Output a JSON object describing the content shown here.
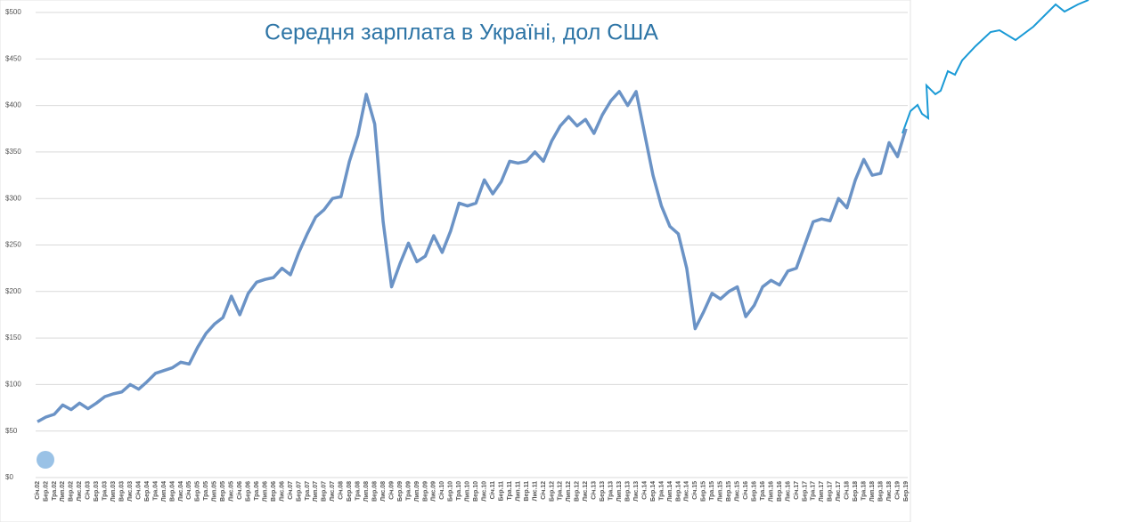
{
  "chart_data": {
    "type": "line",
    "title": "Середня зарплата в Україні, дол США",
    "categories": [
      "Січ.02",
      "Бер.02",
      "Тра.02",
      "Лип.02",
      "Вер.02",
      "Лис.02",
      "Січ.03",
      "Бер.03",
      "Тра.03",
      "Лип.03",
      "Вер.03",
      "Лис.03",
      "Січ.04",
      "Бер.04",
      "Тра.04",
      "Лип.04",
      "Вер.04",
      "Лис.04",
      "Січ.05",
      "Бер.05",
      "Тра.05",
      "Лип.05",
      "Вер.05",
      "Лис.05",
      "Січ.06",
      "Бер.06",
      "Тра.06",
      "Лип.06",
      "Вер.06",
      "Лис.06",
      "Січ.07",
      "Бер.07",
      "Тра.07",
      "Лип.07",
      "Вер.07",
      "Лис.07",
      "Січ.08",
      "Бер.08",
      "Тра.08",
      "Лип.08",
      "Вер.08",
      "Лис.08",
      "Січ.09",
      "Бер.09",
      "Тра.09",
      "Лип.09",
      "Вер.09",
      "Лис.09",
      "Січ.10",
      "Бер.10",
      "Тра.10",
      "Лип.10",
      "Вер.10",
      "Лис.10",
      "Січ.11",
      "Бер.11",
      "Тра.11",
      "Лип.11",
      "Вер.11",
      "Лис.11",
      "Січ.12",
      "Бер.12",
      "Тра.12",
      "Лип.12",
      "Вер.12",
      "Лис.12",
      "Січ.13",
      "Бер.13",
      "Тра.13",
      "Лип.13",
      "Вер.13",
      "Лис.13",
      "Січ.14",
      "Бер.14",
      "Тра.14",
      "Лип.14",
      "Вер.14",
      "Лис.14",
      "Січ.15",
      "Бер.15",
      "Тра.15",
      "Лип.15",
      "Вер.15",
      "Лис.15",
      "Січ.16",
      "Бер.16",
      "Тра.16",
      "Лип.16",
      "Вер.16",
      "Лис.16",
      "Січ.17",
      "Бер.17",
      "Тра.17",
      "Лип.17",
      "Вер.17",
      "Лис.17",
      "Січ.18",
      "Бер.18",
      "Тра.18",
      "Лип.18",
      "Вер.18",
      "Лис.18",
      "Січ.19",
      "Бер.19"
    ],
    "values": [
      60,
      65,
      68,
      78,
      73,
      80,
      74,
      80,
      87,
      90,
      92,
      100,
      95,
      103,
      112,
      115,
      118,
      124,
      122,
      140,
      155,
      165,
      172,
      195,
      175,
      198,
      210,
      213,
      215,
      225,
      218,
      242,
      262,
      280,
      288,
      300,
      302,
      340,
      368,
      412,
      380,
      275,
      205,
      230,
      252,
      232,
      238,
      260,
      242,
      265,
      295,
      292,
      295,
      320,
      305,
      318,
      340,
      338,
      340,
      350,
      340,
      362,
      378,
      388,
      378,
      385,
      370,
      390,
      405,
      415,
      400,
      415,
      370,
      325,
      292,
      270,
      262,
      225,
      160,
      178,
      198,
      192,
      200,
      205,
      173,
      185,
      205,
      212,
      207,
      222,
      225,
      250,
      275,
      278,
      276,
      300,
      290,
      320,
      342,
      325,
      327,
      360,
      345,
      375
    ],
    "color": "#6b93c6",
    "ylim": [
      0,
      500
    ],
    "yticks": [
      {
        "value": 0,
        "label": "$0"
      },
      {
        "value": 50,
        "label": "$50"
      },
      {
        "value": 100,
        "label": "$100"
      },
      {
        "value": 150,
        "label": "$150"
      },
      {
        "value": 200,
        "label": "$200"
      },
      {
        "value": 250,
        "label": "$250"
      },
      {
        "value": 300,
        "label": "$300"
      },
      {
        "value": 350,
        "label": "$350"
      },
      {
        "value": 400,
        "label": "$400"
      },
      {
        "value": 450,
        "label": "$450"
      },
      {
        "value": 500,
        "label": "$500"
      }
    ],
    "grid": true
  }
}
